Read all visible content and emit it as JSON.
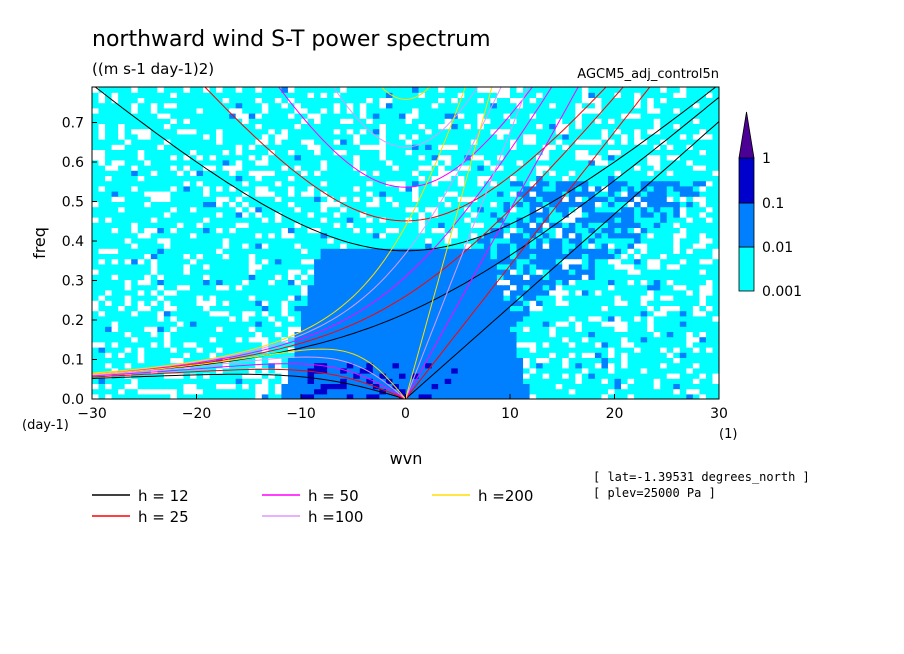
{
  "title": "northward wind S-T power spectrum",
  "units": "((m s-1 day-1)2)",
  "run_label": "AGCM5_adj_control5n",
  "meta": [
    "[ lat=-1.39531 degrees_north ]",
    "[ plev=25000 Pa ]"
  ],
  "chart_data": {
    "type": "heatmap",
    "title": "northward wind S-T power spectrum",
    "xlabel": "wvn",
    "ylabel": "freq",
    "x_unit": "(1)",
    "y_unit": "(day-1)",
    "xlim": [
      -30,
      30
    ],
    "ylim": [
      0,
      0.79
    ],
    "x_ticks": [
      -30,
      -20,
      -10,
      0,
      10,
      20,
      30
    ],
    "y_ticks": [
      0.0,
      0.1,
      0.2,
      0.3,
      0.4,
      0.5,
      0.6,
      0.7
    ],
    "colorbar": {
      "levels": [
        0.001,
        0.01,
        0.1,
        1
      ],
      "labels": [
        "0.001",
        "0.01",
        "0.1",
        "1"
      ],
      "colors": [
        "#ffffff",
        "#00ffff",
        "#0080ff",
        "#0000cc",
        "#4b0096"
      ]
    },
    "dispersion_curves": [
      {
        "label": "h = 12",
        "h": 12,
        "color": "#000000"
      },
      {
        "label": "h = 25",
        "h": 25,
        "color": "#ff0000"
      },
      {
        "label": "h = 50",
        "h": 50,
        "color": "#ff00ff"
      },
      {
        "label": "h =100",
        "h": 100,
        "color": "#dd99ff"
      },
      {
        "label": "h =200",
        "h": 200,
        "color": "#ffdd00"
      }
    ],
    "grid": false
  }
}
